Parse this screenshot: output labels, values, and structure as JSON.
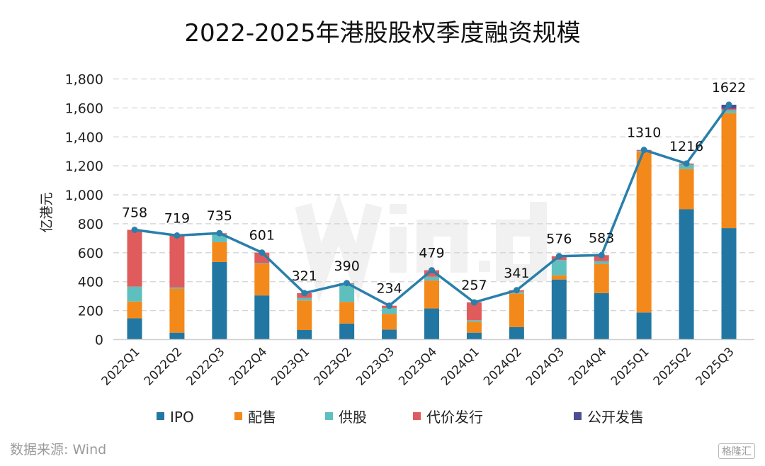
{
  "chart_data": {
    "type": "bar",
    "stacked": true,
    "title": "2022-2025年港股股权季度融资规模",
    "ylabel": "亿港元",
    "xlabel": "",
    "ylim": [
      0,
      1800
    ],
    "yticks": [
      "0",
      "200",
      "400",
      "600",
      "800",
      "1,000",
      "1,200",
      "1,400",
      "1,600",
      "1,800"
    ],
    "ytick_values": [
      0,
      200,
      400,
      600,
      800,
      1000,
      1200,
      1400,
      1600,
      1800
    ],
    "grid": true,
    "legend_position": "bottom",
    "categories": [
      "2022Q1",
      "2022Q2",
      "2022Q3",
      "2022Q4",
      "2023Q1",
      "2023Q2",
      "2023Q3",
      "2023Q4",
      "2024Q1",
      "2024Q2",
      "2024Q3",
      "2024Q4",
      "2025Q1",
      "2025Q2",
      "2025Q3"
    ],
    "series": [
      {
        "name": "IPO",
        "color": "#2277a2",
        "values": [
          147,
          48,
          536,
          305,
          66,
          111,
          69,
          215,
          48,
          86,
          415,
          321,
          187,
          900,
          770
        ]
      },
      {
        "name": "配售",
        "color": "#f4891b",
        "values": [
          116,
          304,
          137,
          218,
          204,
          149,
          109,
          193,
          76,
          233,
          29,
          202,
          1108,
          278,
          794
        ]
      },
      {
        "name": "供股",
        "color": "#5fbfbf",
        "values": [
          103,
          8,
          54,
          4,
          17,
          126,
          40,
          26,
          10,
          12,
          105,
          18,
          8,
          30,
          20
        ]
      },
      {
        "name": "代价发行",
        "color": "#e05c5c",
        "values": [
          392,
          359,
          8,
          74,
          34,
          4,
          16,
          45,
          123,
          10,
          27,
          42,
          7,
          8,
          10
        ]
      },
      {
        "name": "公开发售",
        "color": "#4a4f8f",
        "values": [
          0,
          0,
          0,
          0,
          0,
          0,
          0,
          0,
          0,
          0,
          0,
          0,
          0,
          0,
          28
        ]
      }
    ],
    "totals": {
      "values": [
        758,
        719,
        735,
        601,
        321,
        390,
        234,
        479,
        257,
        341,
        576,
        583,
        1310,
        1216,
        1622
      ],
      "color": "#2a7fab"
    }
  },
  "source": "数据来源: Wind",
  "watermark": "Wind",
  "logo": "格隆汇"
}
